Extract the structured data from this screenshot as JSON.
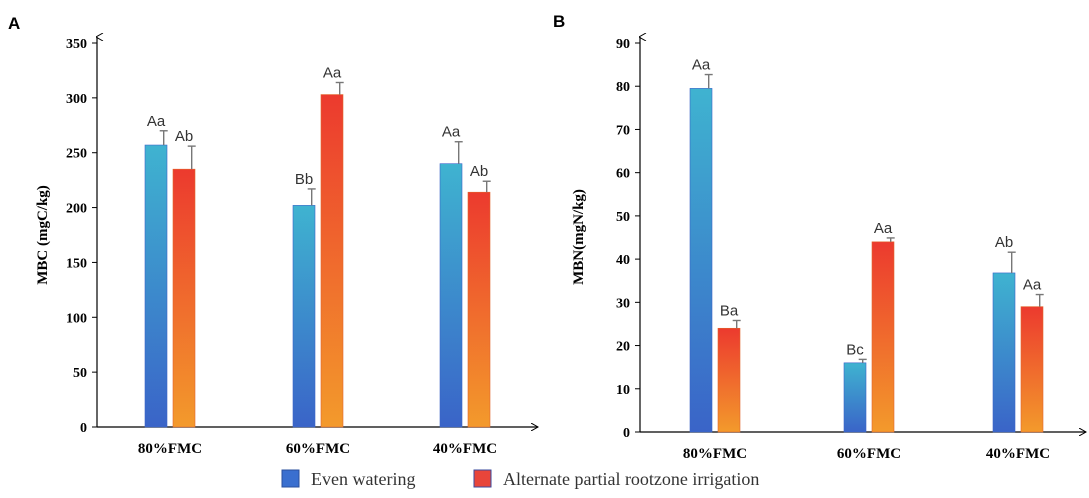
{
  "chart_data": [
    {
      "type": "bar",
      "panel": "A",
      "categories": [
        "80%FMC",
        "60%FMC",
        "40%FMC"
      ],
      "ylabel": "MBC (mgC/kg)",
      "ylim": [
        0,
        350
      ],
      "yticks": [
        "0",
        "50",
        "100",
        "150",
        "200",
        "250",
        "300",
        "350"
      ],
      "series": [
        {
          "name": "Even watering",
          "values": [
            257,
            202,
            240
          ],
          "errors": [
            13,
            15,
            20
          ],
          "labels": [
            "Aa",
            "Bb",
            "Aa"
          ]
        },
        {
          "name": "Alternate partial rootzone irrigation",
          "values": [
            235,
            303,
            214
          ],
          "errors": [
            21,
            11,
            10
          ],
          "labels": [
            "Ab",
            "Aa",
            "Ab"
          ]
        }
      ],
      "grid": false
    },
    {
      "type": "bar",
      "panel": "B",
      "categories": [
        "80%FMC",
        "60%FMC",
        "40%FMC"
      ],
      "ylabel": "MBN(mgN/kg)",
      "ylim": [
        0,
        90
      ],
      "yticks": [
        "0",
        "10",
        "20",
        "30",
        "40",
        "50",
        "60",
        "70",
        "80",
        "90"
      ],
      "series": [
        {
          "name": "Even watering",
          "values": [
            79.5,
            16,
            36.8
          ],
          "errors": [
            3.2,
            0.8,
            4.8
          ],
          "labels": [
            "Aa",
            "Bc",
            "Ab"
          ]
        },
        {
          "name": "Alternate partial rootzone irrigation",
          "values": [
            24,
            44,
            29
          ],
          "errors": [
            1.8,
            0.9,
            2.8
          ],
          "labels": [
            "Ba",
            "Aa",
            "Aa"
          ]
        }
      ],
      "grid": false
    }
  ],
  "legend": {
    "placement": "bottom",
    "items": [
      "Even watering",
      "Alternate partial rootzone irrigation"
    ]
  },
  "colors": {
    "even_top": "#3fb3d0",
    "even_bottom": "#3a64c8",
    "apri_top": "#ec3a2e",
    "apri_bottom": "#f39a2c",
    "legend_even": "#3a6fcf",
    "legend_apri": "#e8453a"
  }
}
